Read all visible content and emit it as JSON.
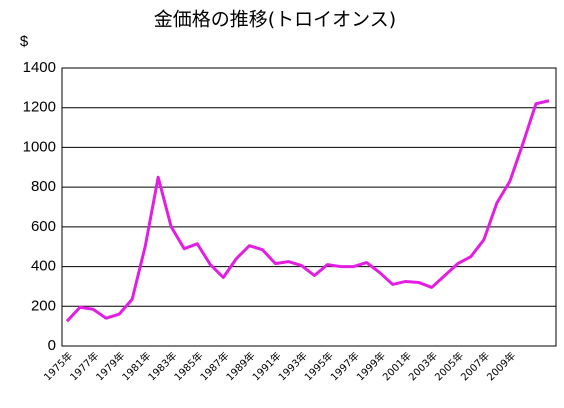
{
  "chart_data": {
    "type": "line",
    "title": "金価格の推移(トロイオンス)",
    "y_label": "$",
    "categories": [
      "1975年",
      null,
      "1977年",
      null,
      "1979年",
      null,
      "1981年",
      null,
      "1983年",
      null,
      "1985年",
      null,
      "1987年",
      null,
      "1989年",
      null,
      "1991年",
      null,
      "1993年",
      null,
      "1995年",
      null,
      "1997年",
      null,
      "1999年",
      null,
      "2001年",
      null,
      "2003年",
      null,
      "2005年",
      null,
      "2007年",
      null,
      "2009年",
      null,
      null,
      null
    ],
    "values": [
      125,
      195,
      185,
      140,
      160,
      235,
      500,
      850,
      600,
      490,
      515,
      410,
      345,
      440,
      505,
      485,
      415,
      425,
      405,
      355,
      410,
      400,
      400,
      420,
      370,
      310,
      325,
      320,
      295,
      355,
      415,
      450,
      535,
      720,
      830,
      1020,
      1220,
      1235
    ],
    "color": "#e31ee3",
    "ylim": [
      0,
      1400
    ],
    "yticks": [
      0,
      200,
      400,
      600,
      800,
      1000,
      1200,
      1400
    ],
    "grid": true
  }
}
